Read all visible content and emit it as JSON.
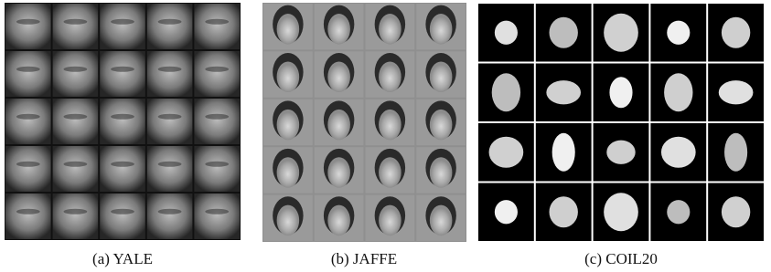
{
  "panels": [
    {
      "caption": "(a) YALE"
    },
    {
      "caption": "(b) JAFFE"
    },
    {
      "caption": "(c) COIL20"
    }
  ]
}
